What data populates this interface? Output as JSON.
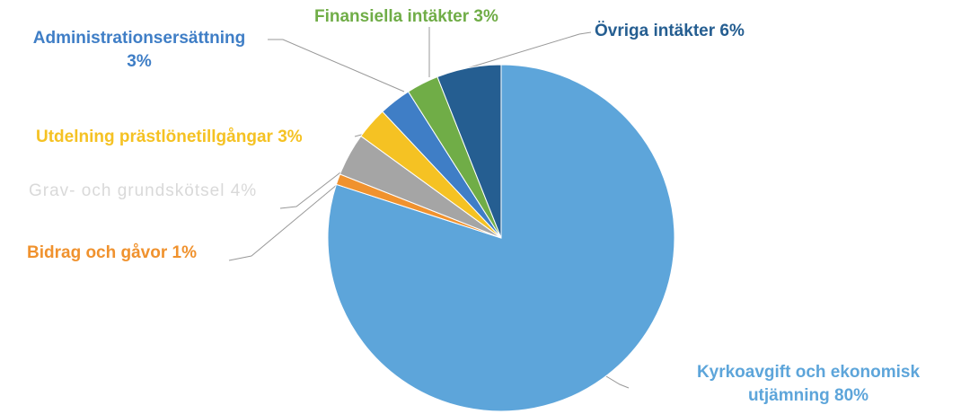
{
  "chart_data": {
    "type": "pie",
    "categories": [
      "Kyrkoavgift och ekonomisk utjämning",
      "Bidrag och gåvor",
      "Grav- och grundskötsel",
      "Utdelning prästlönetillgångar",
      "Administrationsersättning",
      "Finansiella intäkter",
      "Övriga intäkter"
    ],
    "values": [
      80,
      1,
      4,
      3,
      3,
      3,
      6
    ],
    "value_labels": [
      "80%",
      "1%",
      "4%",
      "3%",
      "3%",
      "3%",
      "6%"
    ],
    "colors": [
      "#5da5da",
      "#f0922e",
      "#a5a5a5",
      "#f5c223",
      "#3f7ec6",
      "#70ad47",
      "#255e91"
    ]
  }
}
